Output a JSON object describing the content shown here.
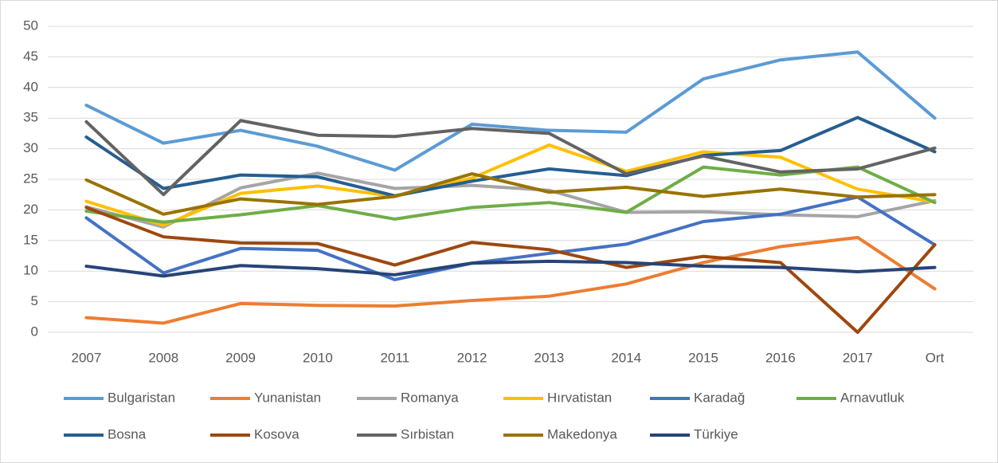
{
  "chart_data": {
    "type": "line",
    "categories": [
      "2007",
      "2008",
      "2009",
      "2010",
      "2011",
      "2012",
      "2013",
      "2014",
      "2015",
      "2016",
      "2017",
      "Ort"
    ],
    "ylim": [
      0,
      50
    ],
    "yticks": [
      0,
      5,
      10,
      15,
      20,
      25,
      30,
      35,
      40,
      45,
      50
    ],
    "grid": true,
    "legend": "bottom",
    "series": [
      {
        "name": "Bulgaristan",
        "color": "#5b9bd5",
        "values": [
          37.1,
          30.9,
          33,
          30.4,
          26.5,
          34,
          33,
          32.7,
          41.4,
          44.5,
          45.8,
          35
        ]
      },
      {
        "name": "Yunanistan",
        "color": "#ed7d31",
        "values": [
          2.4,
          1.5,
          4.7,
          4.4,
          4.3,
          5.2,
          5.9,
          7.9,
          11.4,
          14,
          15.5,
          7.1
        ]
      },
      {
        "name": "Romanya",
        "color": "#a5a5a5",
        "values": [
          20.5,
          17.2,
          23.6,
          26,
          23.5,
          24,
          23.2,
          19.6,
          19.7,
          19.2,
          18.9,
          21.5
        ]
      },
      {
        "name": "Hırvatistan",
        "color": "#ffc000",
        "values": [
          21.4,
          17.5,
          22.7,
          23.9,
          22.2,
          25.2,
          30.6,
          26.3,
          29.5,
          28.6,
          23.4,
          21.3
        ]
      },
      {
        "name": "Karadağ",
        "color": "#4472c4",
        "values": [
          18.7,
          9.7,
          13.7,
          13.4,
          8.6,
          11.3,
          12.9,
          14.4,
          18.1,
          19.3,
          22.1,
          14.3
        ]
      },
      {
        "name": "Arnavutluk",
        "color": "#70ad47",
        "values": [
          19.8,
          18,
          19.2,
          20.7,
          18.5,
          20.4,
          21.2,
          19.6,
          27,
          25.7,
          27,
          21.2
        ]
      },
      {
        "name": "Bosna",
        "color": "#255e91",
        "values": [
          31.9,
          23.5,
          25.7,
          25.4,
          22.3,
          24.7,
          26.7,
          25.6,
          28.9,
          29.7,
          35.1,
          29.5
        ]
      },
      {
        "name": "Kosova",
        "color": "#9e480e",
        "values": [
          20.4,
          15.6,
          14.6,
          14.5,
          11,
          14.7,
          13.5,
          10.6,
          12.4,
          11.4,
          0,
          14.3
        ]
      },
      {
        "name": "Sırbistan",
        "color": "#636363",
        "values": [
          34.4,
          22.5,
          34.6,
          32.2,
          32,
          33.3,
          32.5,
          25.9,
          28.8,
          26.2,
          26.7,
          30.1
        ]
      },
      {
        "name": "Makedonya",
        "color": "#997300",
        "values": [
          24.9,
          19.3,
          21.8,
          20.9,
          22.2,
          25.9,
          22.9,
          23.7,
          22.2,
          23.4,
          22.1,
          22.5
        ]
      },
      {
        "name": "Türkiye",
        "color": "#264478",
        "values": [
          10.8,
          9.2,
          10.9,
          10.4,
          9.4,
          11.3,
          11.6,
          11.4,
          10.8,
          10.6,
          9.9,
          10.6
        ]
      }
    ]
  }
}
